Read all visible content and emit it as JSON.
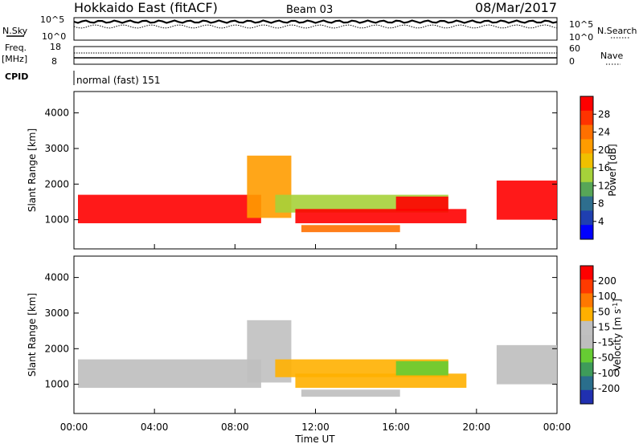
{
  "header": {
    "title": "Hokkaido East (fitACF)",
    "beam": "Beam 03",
    "date": "08/Mar/2017"
  },
  "labels": {
    "nsky": "N.Sky",
    "nsearch": "N.Search",
    "freq": "Freq.",
    "freq_unit": "[MHz]",
    "nave": "Nave",
    "cpid": "CPID",
    "mode": "normal (fast) 151",
    "ylabel": "Slant Range [km]",
    "xlabel": "Time UT"
  },
  "noise_panel": {
    "left_ticks": [
      "10^5",
      "10^0"
    ],
    "right_ticks": [
      "10^5",
      "10^0"
    ]
  },
  "freq_panel": {
    "left_ticks": [
      "18",
      "8"
    ],
    "right_ticks": [
      "60",
      "0"
    ]
  },
  "power_colorbar": {
    "label": "Power [dB]",
    "ticks": [
      "28",
      "24",
      "20",
      "16",
      "12",
      "8",
      "4"
    ],
    "colors": [
      "#ff0000",
      "#ff3300",
      "#ff7000",
      "#ff9c00",
      "#f0c000",
      "#a6d23a",
      "#57a657",
      "#2e6e8e",
      "#1f3fb0",
      "#0000ff"
    ]
  },
  "velocity_colorbar": {
    "label": "Velocity [m s",
    "label_sup": "-1",
    "label_end": "]",
    "ticks": [
      "200",
      "100",
      "50",
      "15",
      "-15",
      "-50",
      "-100",
      "-200"
    ],
    "colors": [
      "#ff0000",
      "#ff3a00",
      "#ff7800",
      "#ffb000",
      "#c0c0c0",
      "#bebebe",
      "#66cc33",
      "#3e9b5a",
      "#2a6e8c",
      "#2030b0"
    ]
  },
  "chart_data": {
    "type": "heatmap",
    "x_ticks": [
      "00:00",
      "04:00",
      "08:00",
      "12:00",
      "16:00",
      "20:00",
      "00:00"
    ],
    "y_ticks": [
      "1000",
      "2000",
      "3000",
      "4000"
    ],
    "xlim": [
      0,
      24
    ],
    "ylim": [
      180,
      4600
    ],
    "power_echo_regions": [
      {
        "t0": 0.2,
        "t1": 9.3,
        "r0": 900,
        "r1": 1700,
        "level": "28"
      },
      {
        "t0": 8.6,
        "t1": 10.8,
        "r0": 1050,
        "r1": 2800,
        "level": "20"
      },
      {
        "t0": 10.0,
        "t1": 18.6,
        "r0": 1200,
        "r1": 1700,
        "level": "16"
      },
      {
        "t0": 11.0,
        "t1": 19.5,
        "r0": 900,
        "r1": 1300,
        "level": "28"
      },
      {
        "t0": 11.3,
        "t1": 16.2,
        "r0": 650,
        "r1": 850,
        "level": "24"
      },
      {
        "t0": 16.0,
        "t1": 18.6,
        "r0": 1250,
        "r1": 1650,
        "level": "28"
      },
      {
        "t0": 21.0,
        "t1": 24.0,
        "r0": 1000,
        "r1": 2100,
        "level": "28"
      }
    ],
    "velocity_echo_regions": [
      {
        "t0": 0.2,
        "t1": 9.3,
        "r0": 900,
        "r1": 1700,
        "level": "-15"
      },
      {
        "t0": 8.6,
        "t1": 10.8,
        "r0": 1050,
        "r1": 2800,
        "level": "15"
      },
      {
        "t0": 10.0,
        "t1": 18.6,
        "r0": 1200,
        "r1": 1700,
        "level": "50"
      },
      {
        "t0": 11.0,
        "t1": 19.5,
        "r0": 900,
        "r1": 1300,
        "level": "50"
      },
      {
        "t0": 11.3,
        "t1": 16.2,
        "r0": 650,
        "r1": 850,
        "level": "-15"
      },
      {
        "t0": 16.0,
        "t1": 18.6,
        "r0": 1250,
        "r1": 1650,
        "level": "-50"
      },
      {
        "t0": 21.0,
        "t1": 24.0,
        "r0": 1000,
        "r1": 2100,
        "level": "-15"
      }
    ]
  }
}
